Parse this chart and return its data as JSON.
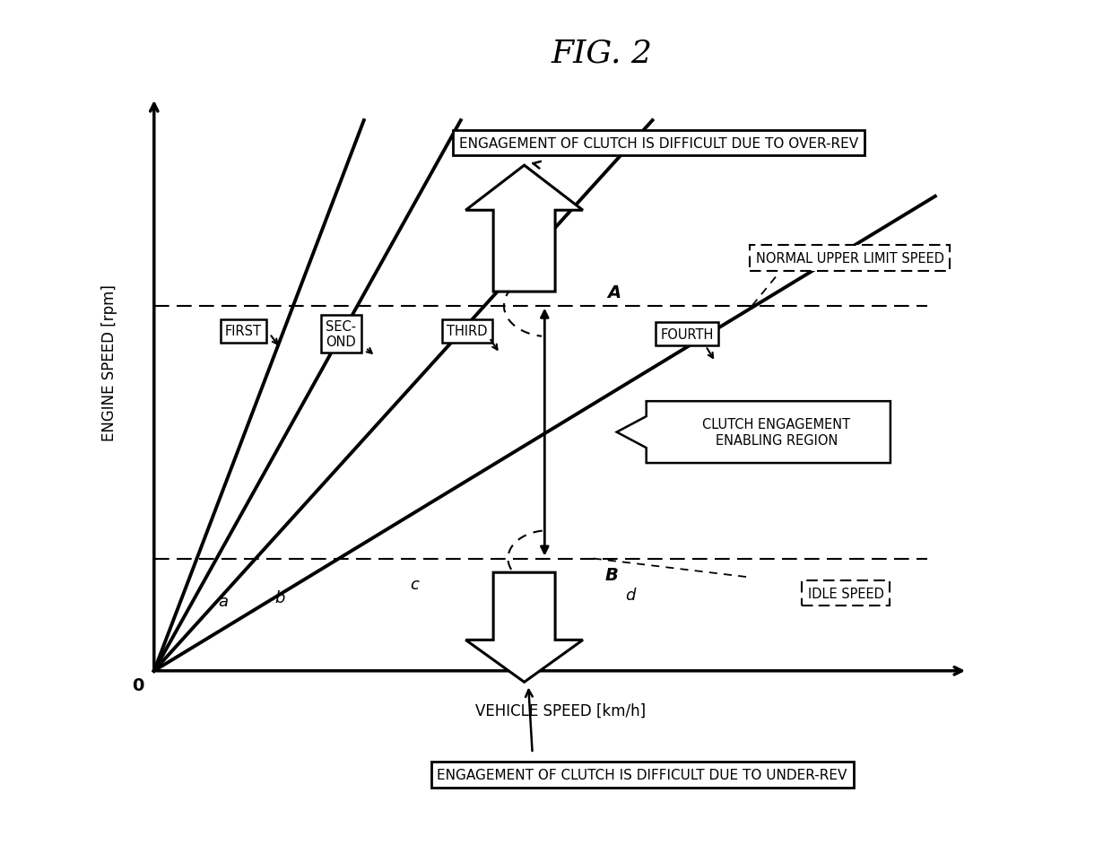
{
  "title": "FIG. 2",
  "xlabel": "VEHICLE SPEED [km/h]",
  "ylabel": "ENGINE SPEED [rpm]",
  "origin_label": "0",
  "xlim": [
    0,
    10
  ],
  "ylim": [
    0,
    10
  ],
  "upper_limit_y": 6.5,
  "idle_y": 2.0,
  "vertical_x": 4.8,
  "gear_slopes": [
    3.8,
    2.6,
    1.6,
    0.88
  ],
  "gear_labels": [
    "FIRST",
    "SEC-\nOND",
    "THIRD",
    "FOURTH"
  ],
  "gear_angle_labels": [
    "a",
    "b",
    "c",
    "d"
  ],
  "annotations": {
    "over_rev": "ENGAGEMENT OF CLUTCH IS DIFFICULT DUE TO OVER-REV",
    "under_rev": "ENGAGEMENT OF CLUTCH IS DIFFICULT DUE TO UNDER-REV",
    "normal_upper": "NORMAL UPPER LIMIT SPEED",
    "idle_speed": "IDLE SPEED",
    "clutch_region": "CLUTCH ENGAGEMENT\nENABLING REGION",
    "point_A": "A",
    "point_B": "B"
  },
  "background_color": "#ffffff",
  "line_color": "#000000"
}
